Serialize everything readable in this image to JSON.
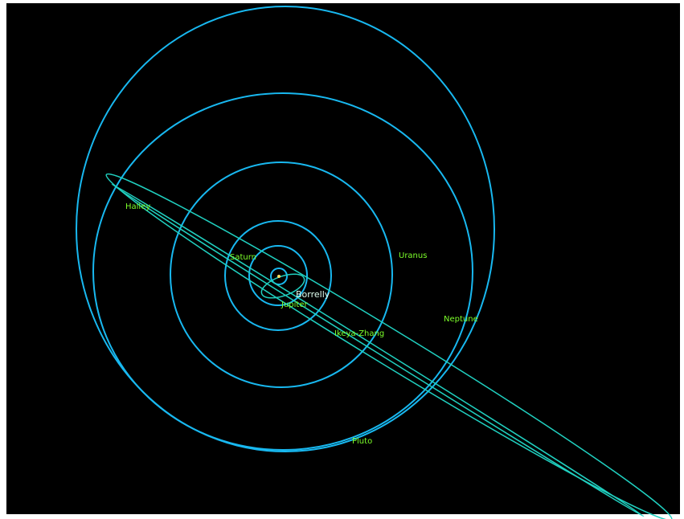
{
  "labels": {
    "halley": "Halley",
    "saturn": "Saturn",
    "uranus": "Uranus",
    "borrelly": "Borrelly",
    "jupiter": "Jupiter",
    "neptune": "Neptune",
    "ikeya_zhang": "Ikeya-Zhang",
    "pluto": "Pluto"
  }
}
